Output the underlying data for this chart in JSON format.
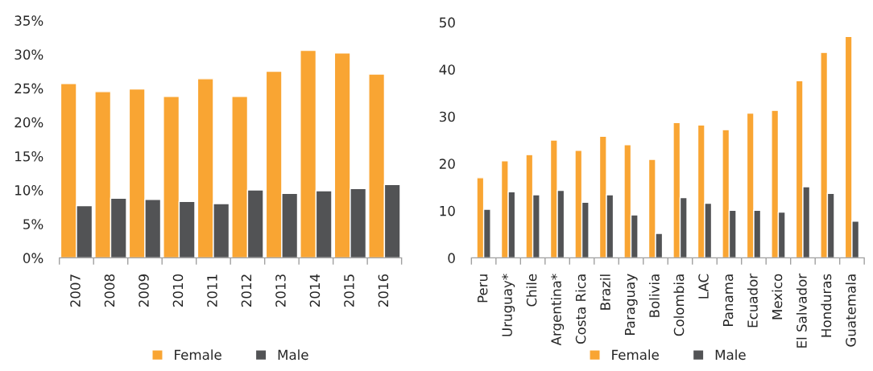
{
  "chart_data": [
    {
      "type": "bar",
      "categories": [
        "2007",
        "2008",
        "2009",
        "2010",
        "2011",
        "2012",
        "2013",
        "2014",
        "2015",
        "2016"
      ],
      "series": [
        {
          "name": "Female",
          "color": "#f9a533",
          "values": [
            25.7,
            24.5,
            24.9,
            23.8,
            26.4,
            23.8,
            27.5,
            30.6,
            30.2,
            27.1
          ]
        },
        {
          "name": "Male",
          "color": "#525355",
          "values": [
            7.7,
            8.8,
            8.6,
            8.3,
            8.0,
            10.0,
            9.5,
            9.9,
            10.2,
            10.8
          ]
        }
      ],
      "ylim": [
        0,
        35
      ],
      "yticks": [
        {
          "value": 0,
          "label": "0%"
        },
        {
          "value": 5,
          "label": "5%"
        },
        {
          "value": 10,
          "label": "10%"
        },
        {
          "value": 15,
          "label": "15%"
        },
        {
          "value": 20,
          "label": "20%"
        },
        {
          "value": 25,
          "label": "25%"
        },
        {
          "value": 30,
          "label": "30%"
        },
        {
          "value": 35,
          "label": "35%"
        }
      ],
      "grid": false,
      "legend": "bottom"
    },
    {
      "type": "bar",
      "categories": [
        "Peru",
        "Uruguay*",
        "Chile",
        "Argentina*",
        "Costa Rica",
        "Brazil",
        "Paraguay",
        "Bolivia",
        "Colombia",
        "LAC",
        "Panama",
        "Ecuador",
        "Mexico",
        "El Salvador",
        "Honduras",
        "Guatemala"
      ],
      "series": [
        {
          "name": "Female",
          "color": "#f9a533",
          "values": [
            17.0,
            20.6,
            21.9,
            25.0,
            22.8,
            25.8,
            24.0,
            20.9,
            28.7,
            28.2,
            27.2,
            30.7,
            31.3,
            37.6,
            43.6,
            47.0
          ]
        },
        {
          "name": "Male",
          "color": "#525355",
          "values": [
            10.3,
            14.0,
            13.4,
            14.3,
            11.8,
            13.4,
            9.1,
            5.2,
            12.8,
            11.6,
            10.1,
            10.1,
            9.7,
            15.1,
            13.7,
            7.8
          ]
        }
      ],
      "ylim": [
        0,
        50
      ],
      "yticks": [
        0,
        10,
        20,
        30,
        40,
        50
      ],
      "grid": false,
      "legend": "bottom"
    }
  ]
}
